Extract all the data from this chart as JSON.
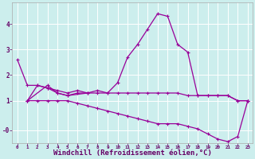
{
  "background_color": "#cceeed",
  "grid_color": "#ffffff",
  "line_color": "#990099",
  "marker": "+",
  "xlabel": "Windchill (Refroidissement éolien,°C)",
  "xlabel_fontsize": 6.5,
  "ytick_labels": [
    "-0",
    "1",
    "2",
    "3",
    "4"
  ],
  "ytick_vals": [
    -0.15,
    1.0,
    2.0,
    3.0,
    4.0
  ],
  "ylim": [
    -0.65,
    4.85
  ],
  "xlim": [
    -0.5,
    23.5
  ],
  "hours": [
    0,
    1,
    2,
    3,
    4,
    5,
    6,
    7,
    8,
    9,
    10,
    11,
    12,
    13,
    14,
    15,
    16,
    17,
    18,
    19,
    20,
    21,
    22,
    23
  ],
  "line1_x": [
    0,
    1,
    2,
    3,
    4,
    5,
    6,
    7,
    8,
    9,
    10,
    11,
    12,
    13,
    14,
    15,
    16,
    17,
    18,
    19,
    20,
    21,
    22,
    23
  ],
  "line1_y": [
    2.6,
    1.6,
    1.6,
    1.5,
    1.4,
    1.3,
    1.4,
    1.3,
    1.4,
    1.3,
    1.7,
    2.7,
    3.2,
    3.8,
    4.4,
    4.3,
    3.2,
    2.9,
    1.2,
    1.2,
    1.2,
    1.2,
    1.0,
    1.0
  ],
  "line2_x": [
    1,
    3,
    4,
    5,
    7
  ],
  "line2_y": [
    1.0,
    1.6,
    1.3,
    1.2,
    1.3
  ],
  "line3_x": [
    1,
    2,
    3,
    4,
    5,
    6,
    7,
    8,
    9,
    10,
    11,
    12,
    13,
    14,
    15,
    16,
    17,
    18,
    19,
    20,
    21,
    22,
    23
  ],
  "line3_y": [
    1.0,
    1.6,
    1.5,
    1.3,
    1.2,
    1.3,
    1.3,
    1.3,
    1.3,
    1.3,
    1.3,
    1.3,
    1.3,
    1.3,
    1.3,
    1.3,
    1.2,
    1.2,
    1.2,
    1.2,
    1.2,
    1.0,
    1.0
  ],
  "line4_x": [
    1,
    2,
    3,
    4,
    5,
    6,
    7,
    8,
    9,
    10,
    11,
    12,
    13,
    14,
    15,
    16,
    17,
    18,
    19,
    20,
    21,
    22,
    23
  ],
  "line4_y": [
    1.0,
    1.0,
    1.0,
    1.0,
    1.0,
    0.9,
    0.8,
    0.7,
    0.6,
    0.5,
    0.4,
    0.3,
    0.2,
    0.1,
    0.1,
    0.1,
    0.0,
    -0.1,
    -0.3,
    -0.5,
    -0.6,
    -0.4,
    1.0
  ]
}
